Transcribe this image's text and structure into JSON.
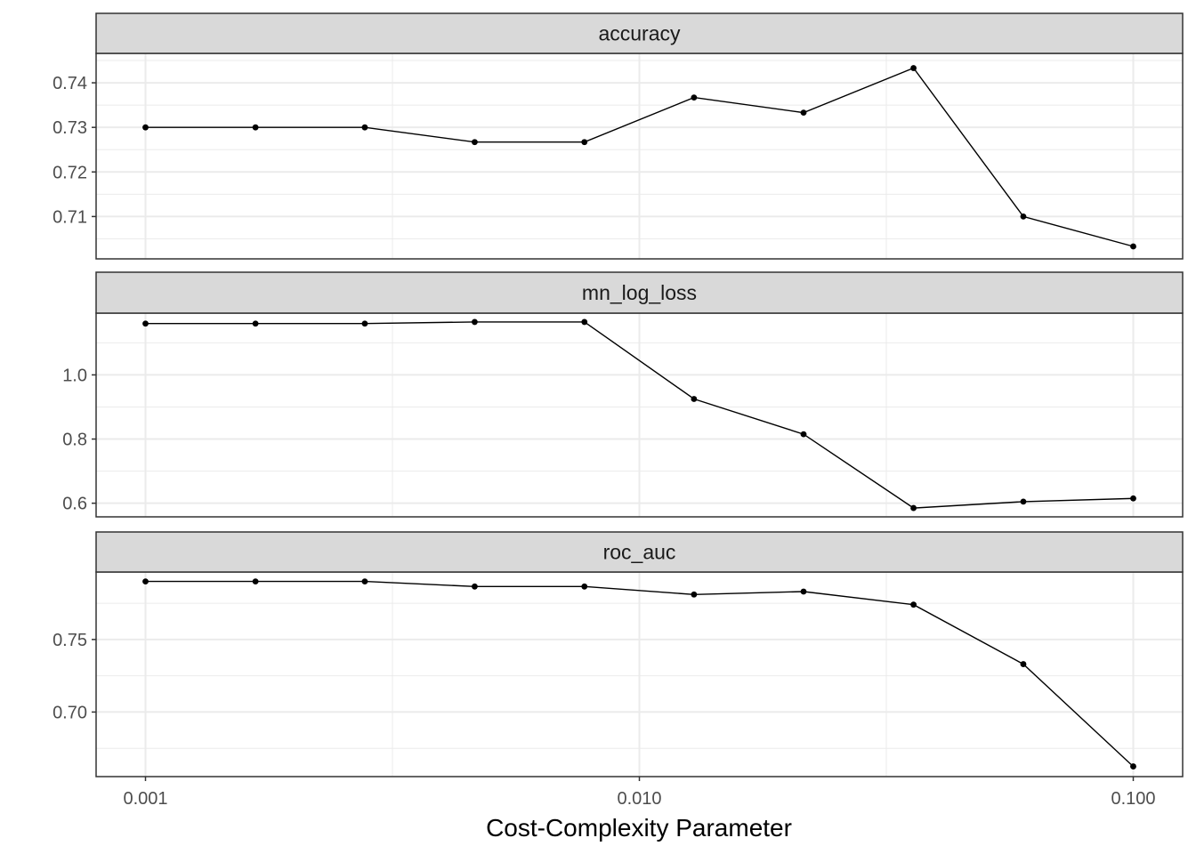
{
  "chart_data": {
    "type": "line",
    "xlabel": "Cost-Complexity Parameter",
    "x_scale": "log10",
    "x_ticks": [
      0.001,
      0.01,
      0.1
    ],
    "x_tick_labels": [
      "0.001",
      "0.010",
      "0.100"
    ],
    "x": [
      0.001,
      0.00167,
      0.00278,
      0.00464,
      0.00774,
      0.0129,
      0.0215,
      0.0359,
      0.0599,
      0.1
    ],
    "grid": true,
    "colors": {
      "line": "#000000",
      "strip_fill": "#d9d9d9",
      "grid": "#ebebeb",
      "border": "#333333"
    },
    "panels": [
      {
        "strip_label": "accuracy",
        "values": [
          0.73,
          0.73,
          0.73,
          0.7267,
          0.7267,
          0.7367,
          0.7333,
          0.7433,
          0.71,
          0.7033
        ],
        "ylim": [
          0.7005,
          0.7466
        ],
        "y_ticks": [
          0.71,
          0.72,
          0.73,
          0.74
        ],
        "y_tick_labels": [
          "0.71",
          "0.72",
          "0.73",
          "0.74"
        ]
      },
      {
        "strip_label": "mn_log_loss",
        "values": [
          1.16,
          1.16,
          1.16,
          1.165,
          1.165,
          0.925,
          0.815,
          0.585,
          0.605,
          0.615
        ],
        "ylim": [
          0.5575,
          1.1925
        ],
        "y_ticks": [
          0.6,
          0.8,
          1.0
        ],
        "y_tick_labels": [
          "0.6",
          "0.8",
          "1.0"
        ]
      },
      {
        "strip_label": "roc_auc",
        "values": [
          0.79,
          0.79,
          0.79,
          0.7865,
          0.7865,
          0.781,
          0.783,
          0.774,
          0.733,
          0.6625
        ],
        "ylim": [
          0.6555,
          0.7965
        ],
        "y_ticks": [
          0.7,
          0.75
        ],
        "y_tick_labels": [
          "0.70",
          "0.75"
        ]
      }
    ]
  }
}
